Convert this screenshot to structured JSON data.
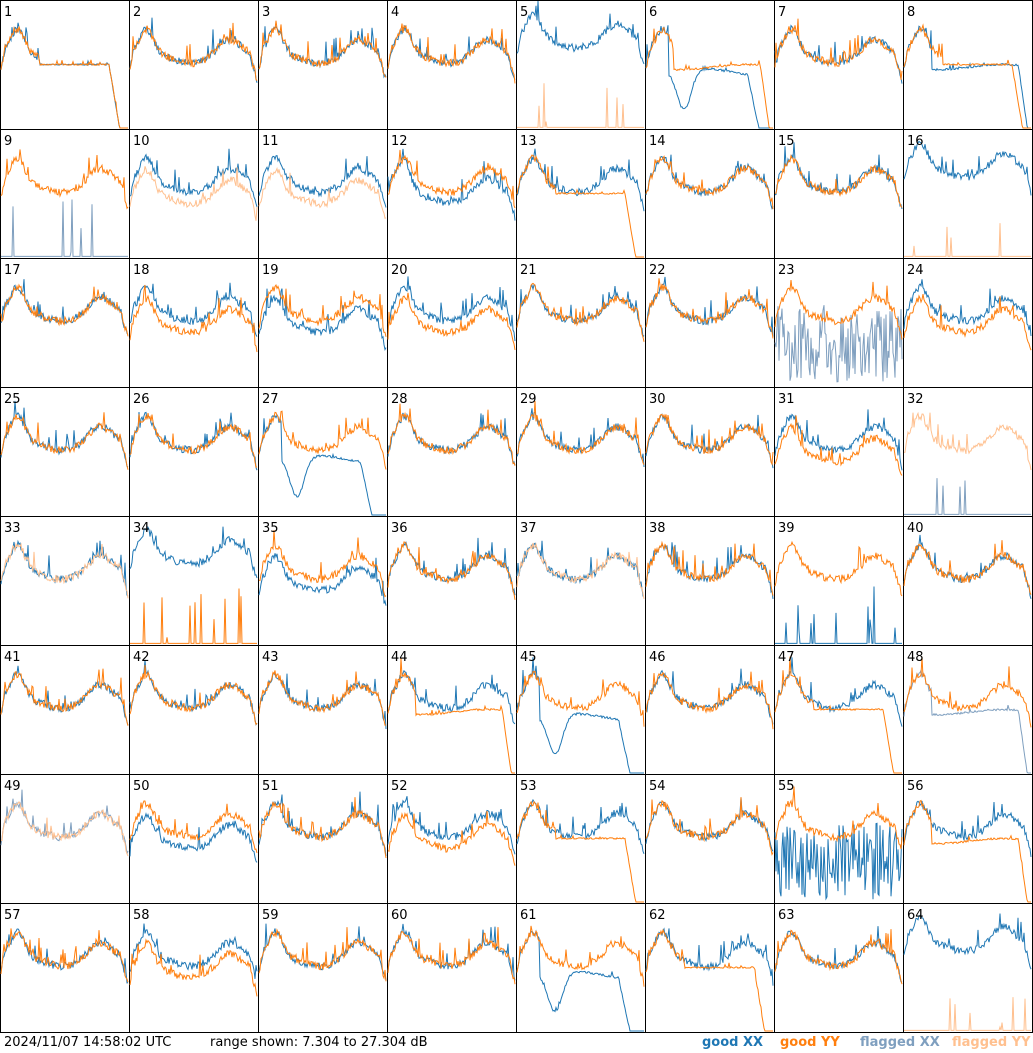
{
  "footer": {
    "timestamp": "2024/11/07 14:58:02 UTC",
    "range": "range shown: 7.304 to 27.304 dB"
  },
  "legend": [
    {
      "word": "good",
      "pol": "XX",
      "color": "#1f77b4"
    },
    {
      "word": "good",
      "pol": "YY",
      "color": "#ff7f0e"
    },
    {
      "word": "flagged",
      "pol": "XX",
      "color": "#7f9fbf"
    },
    {
      "word": "flagged",
      "pol": "YY",
      "color": "#ffc08f"
    }
  ],
  "chart_data": {
    "type": "line",
    "layout": "8x8 small multiples",
    "ylim": [
      7.304,
      27.304
    ],
    "yunit": "dB",
    "panels": [
      {
        "label": "1",
        "xx": "good",
        "yy": "good",
        "xxShape": "drop",
        "yyShape": "drop"
      },
      {
        "label": "2",
        "xx": "good",
        "yy": "good",
        "xxShape": "normal",
        "yyShape": "normal"
      },
      {
        "label": "3",
        "xx": "good",
        "yy": "good",
        "xxShape": "normal",
        "yyShape": "normal"
      },
      {
        "label": "4",
        "xx": "good",
        "yy": "good",
        "xxShape": "normal",
        "yyShape": "normal"
      },
      {
        "label": "5",
        "xx": "good",
        "yy": "flagged",
        "xxShape": "high",
        "yyShape": "spikes"
      },
      {
        "label": "6",
        "xx": "good",
        "yy": "good",
        "xxShape": "deepdrop",
        "yyShape": "plateau"
      },
      {
        "label": "7",
        "xx": "good",
        "yy": "good",
        "xxShape": "normal",
        "yyShape": "normal"
      },
      {
        "label": "8",
        "xx": "good",
        "yy": "good",
        "xxShape": "plateau",
        "yyShape": "drop"
      },
      {
        "label": "9",
        "xx": "flagged",
        "yy": "good",
        "xxShape": "spikes",
        "yyShape": "normal"
      },
      {
        "label": "10",
        "xx": "good",
        "yy": "flagged",
        "xxShape": "normal",
        "yyShape": "lower"
      },
      {
        "label": "11",
        "xx": "good",
        "yy": "flagged",
        "xxShape": "normal",
        "yyShape": "lower"
      },
      {
        "label": "12",
        "xx": "good",
        "yy": "good",
        "xxShape": "lowflat",
        "yyShape": "normal"
      },
      {
        "label": "13",
        "xx": "good",
        "yy": "good",
        "xxShape": "normal",
        "yyShape": "drop"
      },
      {
        "label": "14",
        "xx": "good",
        "yy": "good",
        "xxShape": "normal",
        "yyShape": "normal"
      },
      {
        "label": "15",
        "xx": "good",
        "yy": "good",
        "xxShape": "normal",
        "yyShape": "normal"
      },
      {
        "label": "16",
        "xx": "good",
        "yy": "flagged",
        "xxShape": "high",
        "yyShape": "spikes"
      },
      {
        "label": "17",
        "xx": "good",
        "yy": "good",
        "xxShape": "normal",
        "yyShape": "normal"
      },
      {
        "label": "18",
        "xx": "good",
        "yy": "good",
        "xxShape": "normal",
        "yyShape": "lower"
      },
      {
        "label": "19",
        "xx": "good",
        "yy": "good",
        "xxShape": "lower",
        "yyShape": "normal"
      },
      {
        "label": "20",
        "xx": "good",
        "yy": "good",
        "xxShape": "normal",
        "yyShape": "lower"
      },
      {
        "label": "21",
        "xx": "good",
        "yy": "good",
        "xxShape": "normal",
        "yyShape": "normal"
      },
      {
        "label": "22",
        "xx": "good",
        "yy": "good",
        "xxShape": "normal",
        "yyShape": "normal"
      },
      {
        "label": "23",
        "xx": "flagged",
        "yy": "good",
        "xxShape": "noisy",
        "yyShape": "normal"
      },
      {
        "label": "24",
        "xx": "good",
        "yy": "good",
        "xxShape": "normal",
        "yyShape": "lower"
      },
      {
        "label": "25",
        "xx": "good",
        "yy": "good",
        "xxShape": "normal",
        "yyShape": "normal"
      },
      {
        "label": "26",
        "xx": "good",
        "yy": "good",
        "xxShape": "normal",
        "yyShape": "normal"
      },
      {
        "label": "27",
        "xx": "good",
        "yy": "good",
        "xxShape": "deepdrop",
        "yyShape": "normal"
      },
      {
        "label": "28",
        "xx": "good",
        "yy": "good",
        "xxShape": "normal",
        "yyShape": "normal"
      },
      {
        "label": "29",
        "xx": "good",
        "yy": "good",
        "xxShape": "normal",
        "yyShape": "normal"
      },
      {
        "label": "30",
        "xx": "good",
        "yy": "good",
        "xxShape": "normal",
        "yyShape": "normal"
      },
      {
        "label": "31",
        "xx": "good",
        "yy": "good",
        "xxShape": "normal",
        "yyShape": "lower"
      },
      {
        "label": "32",
        "xx": "flagged",
        "yy": "flagged",
        "xxShape": "spikes",
        "yyShape": "normal"
      },
      {
        "label": "33",
        "xx": "good",
        "yy": "flagged",
        "xxShape": "normal",
        "yyShape": "normal"
      },
      {
        "label": "34",
        "xx": "good",
        "yy": "good",
        "xxShape": "high",
        "yyShape": "spikes"
      },
      {
        "label": "35",
        "xx": "good",
        "yy": "good",
        "xxShape": "lower",
        "yyShape": "normal"
      },
      {
        "label": "36",
        "xx": "good",
        "yy": "good",
        "xxShape": "normal",
        "yyShape": "normal"
      },
      {
        "label": "37",
        "xx": "good",
        "yy": "flagged",
        "xxShape": "normal",
        "yyShape": "normal"
      },
      {
        "label": "38",
        "xx": "good",
        "yy": "good",
        "xxShape": "normal",
        "yyShape": "normal"
      },
      {
        "label": "39",
        "xx": "good",
        "yy": "good",
        "xxShape": "spikes",
        "yyShape": "normal"
      },
      {
        "label": "40",
        "xx": "good",
        "yy": "good",
        "xxShape": "normal",
        "yyShape": "normal"
      },
      {
        "label": "41",
        "xx": "good",
        "yy": "good",
        "xxShape": "normal",
        "yyShape": "normal"
      },
      {
        "label": "42",
        "xx": "good",
        "yy": "good",
        "xxShape": "normal",
        "yyShape": "normal"
      },
      {
        "label": "43",
        "xx": "good",
        "yy": "good",
        "xxShape": "normal",
        "yyShape": "normal"
      },
      {
        "label": "44",
        "xx": "good",
        "yy": "good",
        "xxShape": "normal",
        "yyShape": "plateau"
      },
      {
        "label": "45",
        "xx": "good",
        "yy": "good",
        "xxShape": "deepdrop",
        "yyShape": "normal"
      },
      {
        "label": "46",
        "xx": "good",
        "yy": "good",
        "xxShape": "normal",
        "yyShape": "normal"
      },
      {
        "label": "47",
        "xx": "good",
        "yy": "good",
        "xxShape": "normal",
        "yyShape": "drop"
      },
      {
        "label": "48",
        "xx": "flagged",
        "yy": "good",
        "xxShape": "plateau",
        "yyShape": "normal"
      },
      {
        "label": "49",
        "xx": "flagged",
        "yy": "flagged",
        "xxShape": "normal",
        "yyShape": "normal"
      },
      {
        "label": "50",
        "xx": "good",
        "yy": "good",
        "xxShape": "lower",
        "yyShape": "normal"
      },
      {
        "label": "51",
        "xx": "good",
        "yy": "good",
        "xxShape": "normal",
        "yyShape": "normal"
      },
      {
        "label": "52",
        "xx": "good",
        "yy": "good",
        "xxShape": "normal",
        "yyShape": "lower"
      },
      {
        "label": "53",
        "xx": "good",
        "yy": "good",
        "xxShape": "normal",
        "yyShape": "drop"
      },
      {
        "label": "54",
        "xx": "good",
        "yy": "good",
        "xxShape": "normal",
        "yyShape": "normal"
      },
      {
        "label": "55",
        "xx": "good",
        "yy": "good",
        "xxShape": "noisy",
        "yyShape": "normal"
      },
      {
        "label": "56",
        "xx": "good",
        "yy": "good",
        "xxShape": "normal",
        "yyShape": "plateau"
      },
      {
        "label": "57",
        "xx": "good",
        "yy": "good",
        "xxShape": "normal",
        "yyShape": "normal"
      },
      {
        "label": "58",
        "xx": "good",
        "yy": "good",
        "xxShape": "normal",
        "yyShape": "lower"
      },
      {
        "label": "59",
        "xx": "good",
        "yy": "good",
        "xxShape": "normal",
        "yyShape": "normal"
      },
      {
        "label": "60",
        "xx": "good",
        "yy": "good",
        "xxShape": "normal",
        "yyShape": "normal"
      },
      {
        "label": "61",
        "xx": "good",
        "yy": "good",
        "xxShape": "deepdrop",
        "yyShape": "normal"
      },
      {
        "label": "62",
        "xx": "good",
        "yy": "good",
        "xxShape": "normal",
        "yyShape": "drop"
      },
      {
        "label": "63",
        "xx": "good",
        "yy": "good",
        "xxShape": "normal",
        "yyShape": "normal"
      },
      {
        "label": "64",
        "xx": "good",
        "yy": "flagged",
        "xxShape": "high",
        "yyShape": "spikes"
      }
    ]
  }
}
